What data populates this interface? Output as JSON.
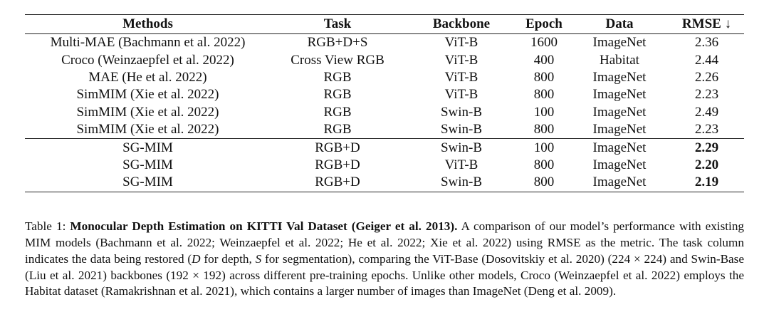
{
  "table": {
    "header": [
      "Methods",
      "Task",
      "Backbone",
      "Epoch",
      "Data",
      "RMSE ↓"
    ],
    "groups": [
      [
        [
          "Multi-MAE (Bachmann et al. 2022)",
          "RGB+D+S",
          "ViT-B",
          "1600",
          "ImageNet",
          "2.36"
        ],
        [
          "Croco (Weinzaepfel et al. 2022)",
          "Cross View RGB",
          "ViT-B",
          "400",
          "Habitat",
          "2.44"
        ],
        [
          "MAE (He et al. 2022)",
          "RGB",
          "ViT-B",
          "800",
          "ImageNet",
          "2.26"
        ],
        [
          "SimMIM (Xie et al. 2022)",
          "RGB",
          "ViT-B",
          "800",
          "ImageNet",
          "2.23"
        ],
        [
          "SimMIM (Xie et al. 2022)",
          "RGB",
          "Swin-B",
          "100",
          "ImageNet",
          "2.49"
        ],
        [
          "SimMIM (Xie et al. 2022)",
          "RGB",
          "Swin-B",
          "800",
          "ImageNet",
          "2.23"
        ]
      ],
      [
        [
          "SG-MIM",
          "RGB+D",
          "Swin-B",
          "100",
          "ImageNet",
          "2.29"
        ],
        [
          "SG-MIM",
          "RGB+D",
          "ViT-B",
          "800",
          "ImageNet",
          "2.20"
        ],
        [
          "SG-MIM",
          "RGB+D",
          "Swin-B",
          "800",
          "ImageNet",
          "2.19"
        ]
      ]
    ]
  },
  "caption": {
    "label": "Table 1:",
    "title": "Monocular Depth Estimation on KITTI Val Dataset (Geiger et al. 2013).",
    "runs": [
      " A comparison of our model’s performance with existing MIM models (Bachmann et al. 2022; Weinzaepfel et al. 2022; He et al. 2022; Xie et al. 2022) using RMSE as the metric. The task column indicates the data being restored (",
      "D",
      " for depth, ",
      "S",
      " for segmentation), comparing the ViT-Base (Doso­vitskiy et al. 2020) (224 × 224) and Swin-Base (Liu et al. 2021) backbones (192 × 192) across different pre-training epochs. Unlike other models, Croco (Weinzaepfel et al. 2022) employs the Habitat dataset (Ramakrishnan et al. 2021), which contains a larger number of images than ImageNet (Deng et al. 2009)."
    ]
  }
}
